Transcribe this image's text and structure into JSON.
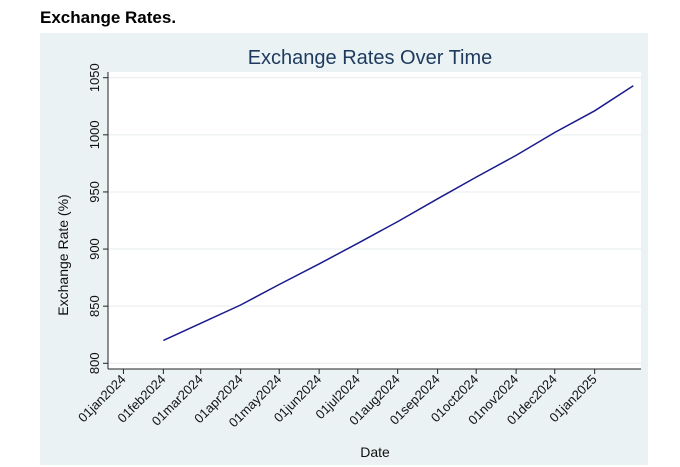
{
  "caption": "Exchange Rates.",
  "chart_data": {
    "type": "line",
    "title": "Exchange Rates Over Time",
    "xlabel": "Date",
    "ylabel": "Exchange Rate (%)",
    "xlim": [
      "2023-12-20",
      "2025-02-06"
    ],
    "ylim": [
      795,
      1055
    ],
    "y_ticks": [
      800,
      850,
      900,
      950,
      1000,
      1050
    ],
    "x_ticks": [
      "2024-01-01",
      "2024-02-01",
      "2024-03-01",
      "2024-04-01",
      "2024-05-01",
      "2024-06-01",
      "2024-07-01",
      "2024-08-01",
      "2024-09-01",
      "2024-10-01",
      "2024-11-01",
      "2024-12-01",
      "2025-01-01"
    ],
    "x_tick_labels": [
      "01jan2024",
      "01feb2024",
      "01mar2024",
      "01apr2024",
      "01may2024",
      "01jun2024",
      "01jul2024",
      "01aug2024",
      "01sep2024",
      "01oct2024",
      "01nov2024",
      "01dec2024",
      "01jan2025"
    ],
    "grid": "horizontal",
    "colors": {
      "line": "#1a1a8c",
      "background": "#eaf2f3",
      "plot_background": "#ffffff",
      "grid": "#e6ecee"
    },
    "series": [
      {
        "x": [
          "2024-02-01",
          "2024-03-01",
          "2024-04-01",
          "2024-05-01",
          "2024-06-01",
          "2024-07-01",
          "2024-08-01",
          "2024-09-01",
          "2024-10-01",
          "2024-11-01",
          "2024-12-01",
          "2025-01-01",
          "2025-01-31"
        ],
        "values": [
          820,
          835,
          851,
          869,
          887,
          905,
          924,
          944,
          963,
          982,
          1002,
          1021,
          1043
        ]
      }
    ]
  }
}
